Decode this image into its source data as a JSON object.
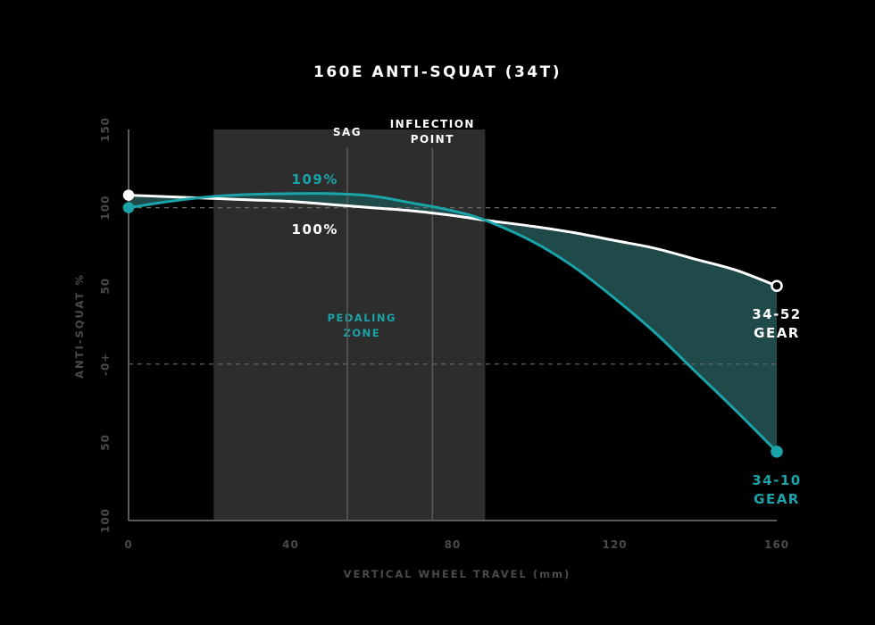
{
  "chart_data": {
    "type": "line",
    "title": "160E ANTI-SQUAT (34T)",
    "xlabel": "VERTICAL WHEEL TRAVEL (mm)",
    "ylabel": "ANTI-SQUAT %",
    "xlim": [
      0,
      160
    ],
    "ylim": [
      -100,
      150
    ],
    "x_ticks": [
      0,
      40,
      80,
      120,
      160
    ],
    "x_tick_labels": [
      "0",
      "40",
      "80",
      "120",
      "160"
    ],
    "y_ticks": [
      150,
      100,
      50,
      0,
      -50,
      -100
    ],
    "y_tick_labels": [
      "150",
      "100",
      "50",
      "-0+",
      "50",
      "100"
    ],
    "reference_lines": [
      100,
      0
    ],
    "zone": {
      "label_line1": "PEDALING",
      "label_line2": "ZONE",
      "x_start": 21,
      "x_end": 88
    },
    "markers": [
      {
        "label_line1": "SAG",
        "label_line2": "",
        "x": 54
      },
      {
        "label_line1": "INFLECTION",
        "label_line2": "POINT",
        "x": 75
      }
    ],
    "annotations": [
      {
        "text": "109%",
        "x": 46,
        "y": 118,
        "color": "#1aa3a8"
      },
      {
        "text": "100%",
        "x": 46,
        "y": 86,
        "color": "#ffffff"
      }
    ],
    "series": [
      {
        "name_line1": "34-52",
        "name_line2": "GEAR",
        "color": "#ffffff",
        "x": [
          0,
          10,
          20,
          30,
          40,
          50,
          60,
          70,
          80,
          88,
          100,
          110,
          120,
          130,
          140,
          150,
          160
        ],
        "y": [
          108,
          107,
          106,
          105,
          104,
          102,
          100,
          98,
          95,
          92,
          88,
          84,
          79,
          74,
          67,
          60,
          50
        ]
      },
      {
        "name_line1": "34-10",
        "name_line2": "GEAR",
        "color": "#1aa3a8",
        "x": [
          0,
          10,
          20,
          30,
          40,
          50,
          60,
          70,
          80,
          88,
          100,
          110,
          120,
          130,
          140,
          150,
          160
        ],
        "y": [
          100,
          104,
          107,
          108.5,
          109,
          109,
          107.5,
          103,
          98,
          92,
          78,
          62,
          42,
          20,
          -5,
          -30,
          -56
        ]
      }
    ],
    "fill_between_color": "#1f4a49"
  }
}
